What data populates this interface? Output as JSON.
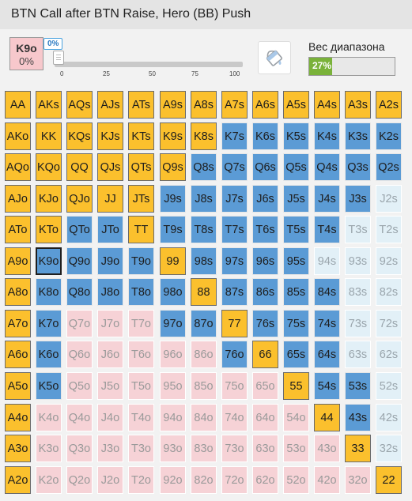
{
  "header": {
    "title": "BTN Call after BTN Raise, Hero (BB) Push"
  },
  "hand_info": {
    "hand": "K9o",
    "percent": "0%"
  },
  "slider": {
    "value_label": "0%",
    "value": 0,
    "ticks": [
      "0",
      "25",
      "50",
      "75",
      "100"
    ]
  },
  "paint_tool": {
    "icon": "paint-bucket-icon"
  },
  "range_weight": {
    "label": "Вес диапазона",
    "value_label": "27%",
    "value": 27,
    "fill_color": "#7ab23a"
  },
  "legend_colors": {
    "push": "#fbc02d",
    "call": "#5b9bd5",
    "fold_suited": "#e2f0f7",
    "fold_offsuit": "#f6d2d6"
  },
  "grid": {
    "selected": "K9o",
    "rows": [
      [
        [
          "AA",
          "push"
        ],
        [
          "AKs",
          "push"
        ],
        [
          "AQs",
          "push"
        ],
        [
          "AJs",
          "push"
        ],
        [
          "ATs",
          "push"
        ],
        [
          "A9s",
          "push"
        ],
        [
          "A8s",
          "push"
        ],
        [
          "A7s",
          "push"
        ],
        [
          "A6s",
          "push"
        ],
        [
          "A5s",
          "push"
        ],
        [
          "A4s",
          "push"
        ],
        [
          "A3s",
          "push"
        ],
        [
          "A2s",
          "push"
        ]
      ],
      [
        [
          "AKo",
          "push"
        ],
        [
          "KK",
          "push"
        ],
        [
          "KQs",
          "push"
        ],
        [
          "KJs",
          "push"
        ],
        [
          "KTs",
          "push"
        ],
        [
          "K9s",
          "push"
        ],
        [
          "K8s",
          "push"
        ],
        [
          "K7s",
          "call"
        ],
        [
          "K6s",
          "call"
        ],
        [
          "K5s",
          "call"
        ],
        [
          "K4s",
          "call"
        ],
        [
          "K3s",
          "call"
        ],
        [
          "K2s",
          "call"
        ]
      ],
      [
        [
          "AQo",
          "push"
        ],
        [
          "KQo",
          "push"
        ],
        [
          "QQ",
          "push"
        ],
        [
          "QJs",
          "push"
        ],
        [
          "QTs",
          "push"
        ],
        [
          "Q9s",
          "push"
        ],
        [
          "Q8s",
          "call"
        ],
        [
          "Q7s",
          "call"
        ],
        [
          "Q6s",
          "call"
        ],
        [
          "Q5s",
          "call"
        ],
        [
          "Q4s",
          "call"
        ],
        [
          "Q3s",
          "call"
        ],
        [
          "Q2s",
          "call"
        ]
      ],
      [
        [
          "AJo",
          "push"
        ],
        [
          "KJo",
          "push"
        ],
        [
          "QJo",
          "push"
        ],
        [
          "JJ",
          "push"
        ],
        [
          "JTs",
          "push"
        ],
        [
          "J9s",
          "call"
        ],
        [
          "J8s",
          "call"
        ],
        [
          "J7s",
          "call"
        ],
        [
          "J6s",
          "call"
        ],
        [
          "J5s",
          "call"
        ],
        [
          "J4s",
          "call"
        ],
        [
          "J3s",
          "call"
        ],
        [
          "J2s",
          "fold-s"
        ]
      ],
      [
        [
          "ATo",
          "push"
        ],
        [
          "KTo",
          "push"
        ],
        [
          "QTo",
          "call"
        ],
        [
          "JTo",
          "call"
        ],
        [
          "TT",
          "push"
        ],
        [
          "T9s",
          "call"
        ],
        [
          "T8s",
          "call"
        ],
        [
          "T7s",
          "call"
        ],
        [
          "T6s",
          "call"
        ],
        [
          "T5s",
          "call"
        ],
        [
          "T4s",
          "call"
        ],
        [
          "T3s",
          "fold-s"
        ],
        [
          "T2s",
          "fold-s"
        ]
      ],
      [
        [
          "A9o",
          "push"
        ],
        [
          "K9o",
          "call"
        ],
        [
          "Q9o",
          "call"
        ],
        [
          "J9o",
          "call"
        ],
        [
          "T9o",
          "call"
        ],
        [
          "99",
          "push"
        ],
        [
          "98s",
          "call"
        ],
        [
          "97s",
          "call"
        ],
        [
          "96s",
          "call"
        ],
        [
          "95s",
          "call"
        ],
        [
          "94s",
          "fold-s"
        ],
        [
          "93s",
          "fold-s"
        ],
        [
          "92s",
          "fold-s"
        ]
      ],
      [
        [
          "A8o",
          "push"
        ],
        [
          "K8o",
          "call"
        ],
        [
          "Q8o",
          "call"
        ],
        [
          "J8o",
          "call"
        ],
        [
          "T8o",
          "call"
        ],
        [
          "98o",
          "call"
        ],
        [
          "88",
          "push"
        ],
        [
          "87s",
          "call"
        ],
        [
          "86s",
          "call"
        ],
        [
          "85s",
          "call"
        ],
        [
          "84s",
          "call"
        ],
        [
          "83s",
          "fold-s"
        ],
        [
          "82s",
          "fold-s"
        ]
      ],
      [
        [
          "A7o",
          "push"
        ],
        [
          "K7o",
          "call"
        ],
        [
          "Q7o",
          "fold-o"
        ],
        [
          "J7o",
          "fold-o"
        ],
        [
          "T7o",
          "fold-o"
        ],
        [
          "97o",
          "call"
        ],
        [
          "87o",
          "call"
        ],
        [
          "77",
          "push"
        ],
        [
          "76s",
          "call"
        ],
        [
          "75s",
          "call"
        ],
        [
          "74s",
          "call"
        ],
        [
          "73s",
          "fold-s"
        ],
        [
          "72s",
          "fold-s"
        ]
      ],
      [
        [
          "A6o",
          "push"
        ],
        [
          "K6o",
          "call"
        ],
        [
          "Q6o",
          "fold-o"
        ],
        [
          "J6o",
          "fold-o"
        ],
        [
          "T6o",
          "fold-o"
        ],
        [
          "96o",
          "fold-o"
        ],
        [
          "86o",
          "fold-o"
        ],
        [
          "76o",
          "call"
        ],
        [
          "66",
          "push"
        ],
        [
          "65s",
          "call"
        ],
        [
          "64s",
          "call"
        ],
        [
          "63s",
          "fold-s"
        ],
        [
          "62s",
          "fold-s"
        ]
      ],
      [
        [
          "A5o",
          "push"
        ],
        [
          "K5o",
          "call"
        ],
        [
          "Q5o",
          "fold-o"
        ],
        [
          "J5o",
          "fold-o"
        ],
        [
          "T5o",
          "fold-o"
        ],
        [
          "95o",
          "fold-o"
        ],
        [
          "85o",
          "fold-o"
        ],
        [
          "75o",
          "fold-o"
        ],
        [
          "65o",
          "fold-o"
        ],
        [
          "55",
          "push"
        ],
        [
          "54s",
          "call"
        ],
        [
          "53s",
          "call"
        ],
        [
          "52s",
          "fold-s"
        ]
      ],
      [
        [
          "A4o",
          "push"
        ],
        [
          "K4o",
          "fold-o"
        ],
        [
          "Q4o",
          "fold-o"
        ],
        [
          "J4o",
          "fold-o"
        ],
        [
          "T4o",
          "fold-o"
        ],
        [
          "94o",
          "fold-o"
        ],
        [
          "84o",
          "fold-o"
        ],
        [
          "74o",
          "fold-o"
        ],
        [
          "64o",
          "fold-o"
        ],
        [
          "54o",
          "fold-o"
        ],
        [
          "44",
          "push"
        ],
        [
          "43s",
          "call"
        ],
        [
          "42s",
          "fold-s"
        ]
      ],
      [
        [
          "A3o",
          "push"
        ],
        [
          "K3o",
          "fold-o"
        ],
        [
          "Q3o",
          "fold-o"
        ],
        [
          "J3o",
          "fold-o"
        ],
        [
          "T3o",
          "fold-o"
        ],
        [
          "93o",
          "fold-o"
        ],
        [
          "83o",
          "fold-o"
        ],
        [
          "73o",
          "fold-o"
        ],
        [
          "63o",
          "fold-o"
        ],
        [
          "53o",
          "fold-o"
        ],
        [
          "43o",
          "fold-o"
        ],
        [
          "33",
          "push"
        ],
        [
          "32s",
          "fold-s"
        ]
      ],
      [
        [
          "A2o",
          "push"
        ],
        [
          "K2o",
          "fold-o"
        ],
        [
          "Q2o",
          "fold-o"
        ],
        [
          "J2o",
          "fold-o"
        ],
        [
          "T2o",
          "fold-o"
        ],
        [
          "92o",
          "fold-o"
        ],
        [
          "82o",
          "fold-o"
        ],
        [
          "72o",
          "fold-o"
        ],
        [
          "62o",
          "fold-o"
        ],
        [
          "52o",
          "fold-o"
        ],
        [
          "42o",
          "fold-o"
        ],
        [
          "32o",
          "fold-o"
        ],
        [
          "22",
          "push"
        ]
      ]
    ]
  }
}
